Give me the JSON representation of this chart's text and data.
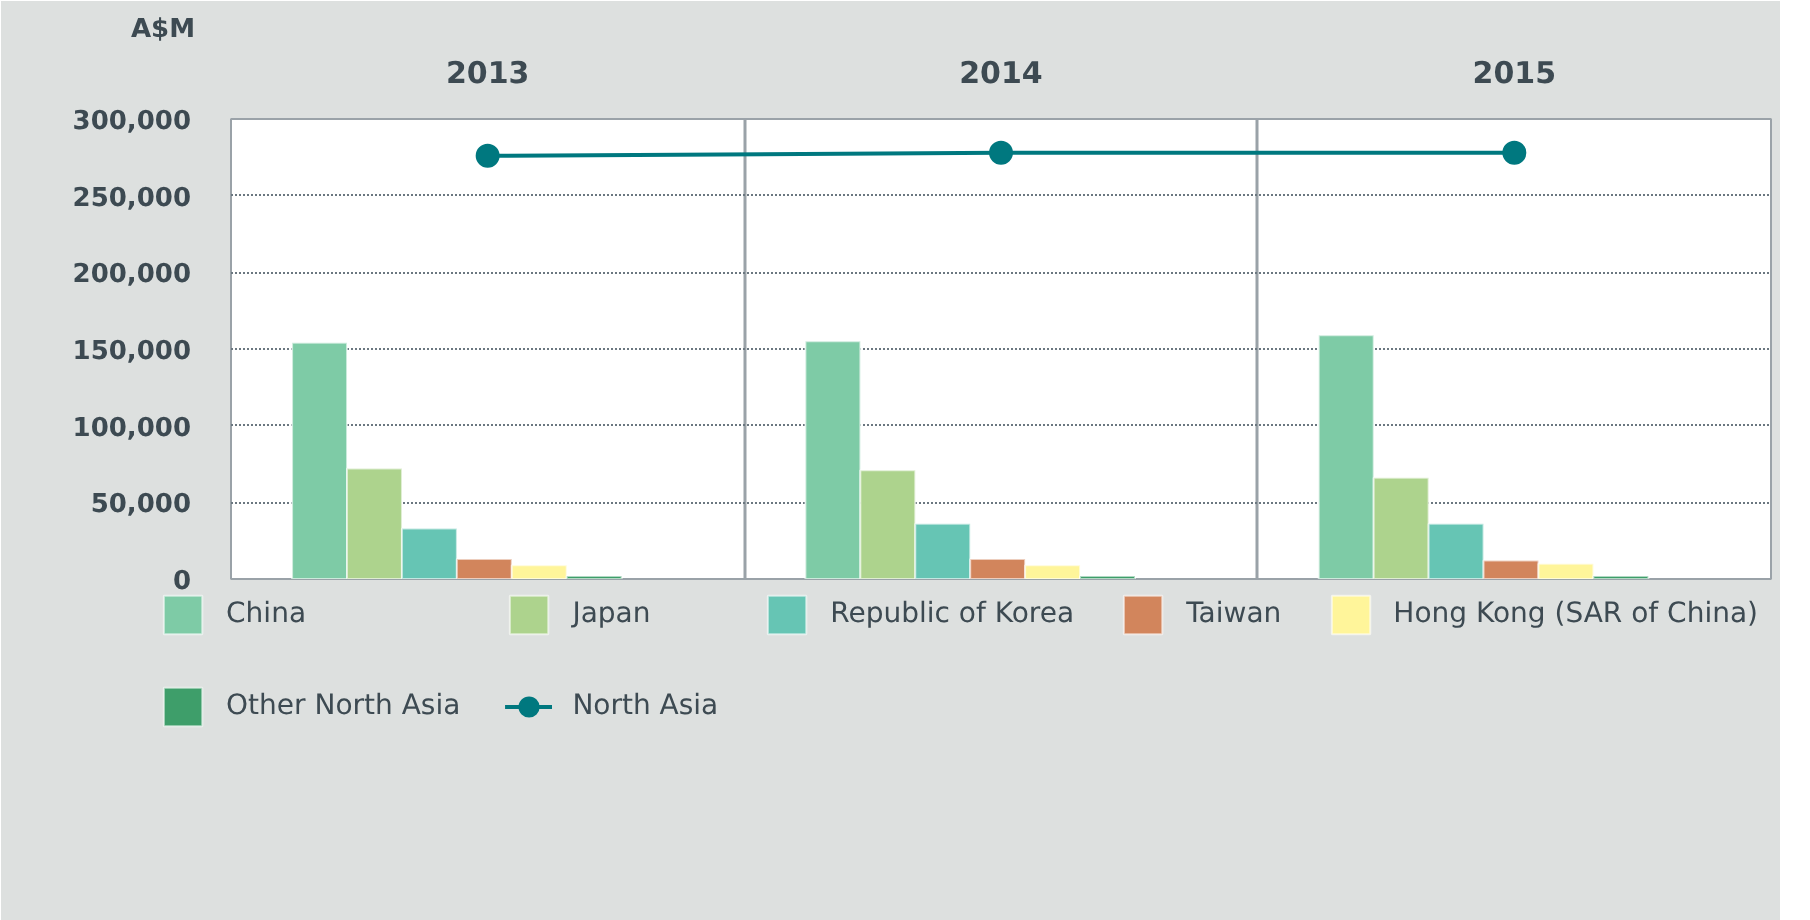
{
  "chart_data": {
    "type": "bar",
    "ylabel": "A$M",
    "categories": [
      "2013",
      "2014",
      "2015"
    ],
    "series": [
      {
        "name": "China",
        "color": "#7ecba6",
        "values": [
          154000,
          155000,
          159000
        ]
      },
      {
        "name": "Japan",
        "color": "#add38d",
        "values": [
          72000,
          71000,
          66000
        ]
      },
      {
        "name": "Republic of Korea",
        "color": "#66c5b4",
        "values": [
          33000,
          36000,
          36000
        ]
      },
      {
        "name": "Taiwan",
        "color": "#d2855c",
        "values": [
          13000,
          13000,
          12000
        ]
      },
      {
        "name": "Hong Kong (SAR of China)",
        "color": "#fff59a",
        "values": [
          9000,
          9000,
          10000
        ]
      },
      {
        "name": "Other North Asia",
        "color": "#3e9e6a",
        "values": [
          2000,
          2000,
          2000
        ]
      },
      {
        "name": "North Asia",
        "type": "line",
        "color": "#00787f",
        "marker": "circle",
        "values": [
          276000,
          278000,
          278000
        ]
      }
    ],
    "ylim": [
      0,
      300000
    ],
    "yticks": [
      {
        "value": 0,
        "label": "0"
      },
      {
        "value": 50000,
        "label": "50,000"
      },
      {
        "value": 100000,
        "label": "100,000"
      },
      {
        "value": 150000,
        "label": "150,000"
      },
      {
        "value": 200000,
        "label": "200,000"
      },
      {
        "value": 250000,
        "label": "250,000"
      },
      {
        "value": 300000,
        "label": "300,000"
      }
    ],
    "grid": true,
    "legend": "bottom"
  }
}
